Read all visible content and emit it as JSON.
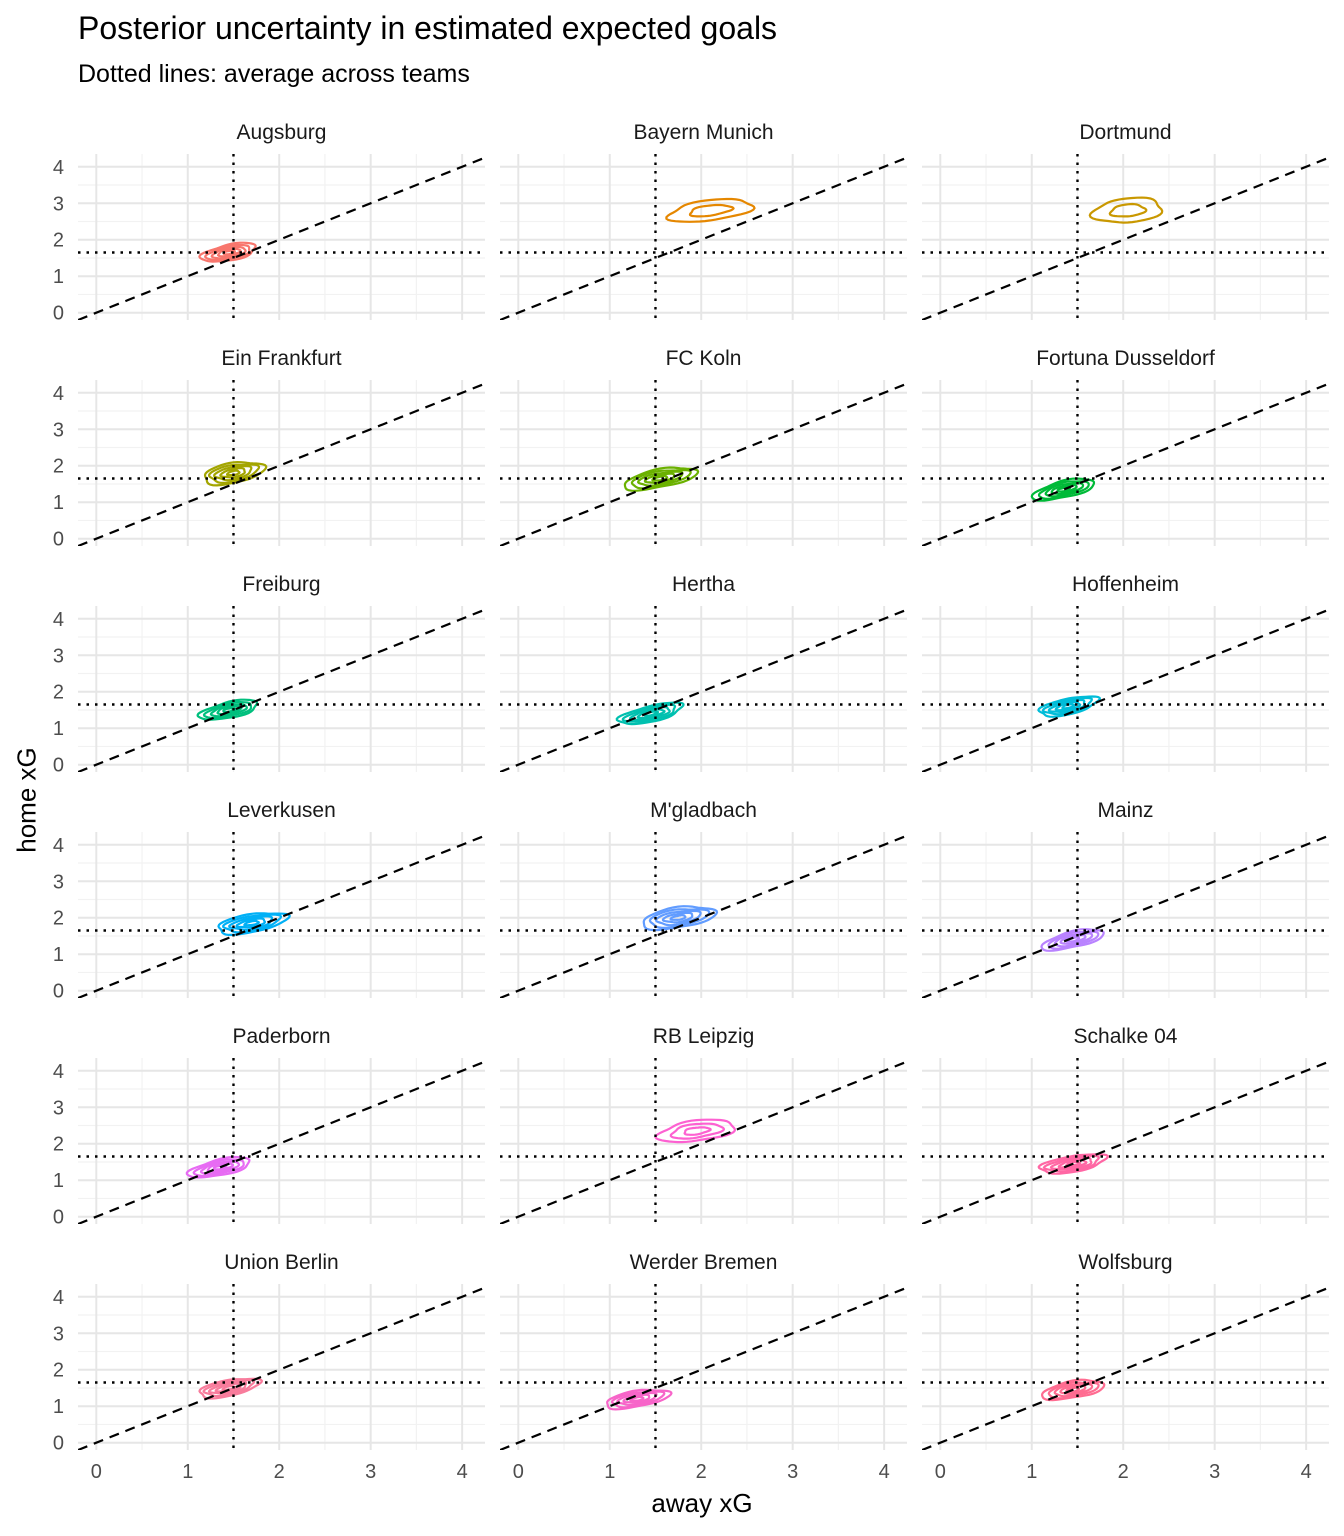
{
  "chart_data": {
    "type": "contour-facets",
    "title": "Posterior uncertainty in estimated expected goals",
    "subtitle": "Dotted lines: average across teams",
    "xlabel": "away xG",
    "ylabel": "home xG",
    "xlim": [
      -0.2,
      4.25
    ],
    "ylim": [
      -0.2,
      4.35
    ],
    "x_ticks": [
      0,
      1,
      2,
      3,
      4
    ],
    "y_ticks": [
      0,
      1,
      2,
      3,
      4
    ],
    "grid": true,
    "reference_lines": {
      "avg_away_xG": 1.5,
      "avg_home_xG": 1.65,
      "identity_intercept": 0,
      "identity_slope": 1
    },
    "facets": [
      {
        "team": "Augsburg",
        "color": "#F8766D",
        "center": [
          1.45,
          1.65
        ],
        "spread": [
          0.3,
          0.22
        ],
        "slope": 0.45,
        "levels": 5
      },
      {
        "team": "Bayern Munich",
        "color": "#E58700",
        "center": [
          2.1,
          2.8
        ],
        "spread": [
          0.46,
          0.28
        ],
        "slope": 0.3,
        "levels": 2
      },
      {
        "team": "Dortmund",
        "color": "#C99800",
        "center": [
          2.05,
          2.8
        ],
        "spread": [
          0.38,
          0.33
        ],
        "slope": 0.2,
        "levels": 2
      },
      {
        "team": "Ein Frankfurt",
        "color": "#A3A500",
        "center": [
          1.5,
          1.8
        ],
        "spread": [
          0.33,
          0.28
        ],
        "slope": 0.4,
        "levels": 5
      },
      {
        "team": "FC Koln",
        "color": "#6BB100",
        "center": [
          1.55,
          1.65
        ],
        "spread": [
          0.4,
          0.25
        ],
        "slope": 0.45,
        "levels": 5
      },
      {
        "team": "Fortuna Dusseldorf",
        "color": "#00BA38",
        "center": [
          1.35,
          1.35
        ],
        "spread": [
          0.34,
          0.23
        ],
        "slope": 0.55,
        "levels": 5
      },
      {
        "team": "Freiburg",
        "color": "#00BF7D",
        "center": [
          1.45,
          1.5
        ],
        "spread": [
          0.32,
          0.22
        ],
        "slope": 0.5,
        "levels": 5
      },
      {
        "team": "Hertha",
        "color": "#00C0AF",
        "center": [
          1.45,
          1.4
        ],
        "spread": [
          0.35,
          0.22
        ],
        "slope": 0.55,
        "levels": 5
      },
      {
        "team": "Hoffenheim",
        "color": "#00BCD8",
        "center": [
          1.4,
          1.6
        ],
        "spread": [
          0.32,
          0.22
        ],
        "slope": 0.5,
        "levels": 5
      },
      {
        "team": "Leverkusen",
        "color": "#00B0F6",
        "center": [
          1.7,
          1.85
        ],
        "spread": [
          0.38,
          0.25
        ],
        "slope": 0.4,
        "levels": 5
      },
      {
        "team": "M'gladbach",
        "color": "#619CFF",
        "center": [
          1.75,
          2.0
        ],
        "spread": [
          0.4,
          0.28
        ],
        "slope": 0.35,
        "levels": 5
      },
      {
        "team": "Mainz",
        "color": "#B983FF",
        "center": [
          1.45,
          1.4
        ],
        "spread": [
          0.34,
          0.22
        ],
        "slope": 0.55,
        "levels": 5
      },
      {
        "team": "Paderborn",
        "color": "#E76BF3",
        "center": [
          1.35,
          1.35
        ],
        "spread": [
          0.34,
          0.22
        ],
        "slope": 0.5,
        "levels": 5
      },
      {
        "team": "RB Leipzig",
        "color": "#FD61D1",
        "center": [
          1.95,
          2.35
        ],
        "spread": [
          0.42,
          0.28
        ],
        "slope": 0.3,
        "levels": 3
      },
      {
        "team": "Schalke 04",
        "color": "#FF67A4",
        "center": [
          1.45,
          1.45
        ],
        "spread": [
          0.36,
          0.22
        ],
        "slope": 0.4,
        "levels": 5
      },
      {
        "team": "Union Berlin",
        "color": "#F87C9C",
        "center": [
          1.45,
          1.5
        ],
        "spread": [
          0.33,
          0.22
        ],
        "slope": 0.45,
        "levels": 5
      },
      {
        "team": "Werder Bremen",
        "color": "#F765C9",
        "center": [
          1.3,
          1.2
        ],
        "spread": [
          0.35,
          0.22
        ],
        "slope": 0.4,
        "levels": 5
      },
      {
        "team": "Wolfsburg",
        "color": "#FF6C91",
        "center": [
          1.45,
          1.45
        ],
        "spread": [
          0.34,
          0.23
        ],
        "slope": 0.4,
        "levels": 5
      }
    ]
  }
}
